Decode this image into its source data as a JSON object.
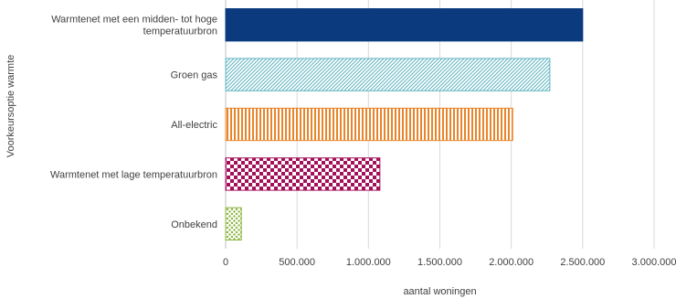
{
  "chart_data": {
    "type": "bar",
    "orientation": "horizontal",
    "title": "",
    "xlabel": "aantal woningen",
    "ylabel": "Voorkeursoptie warmte",
    "xlim": [
      0,
      3000000
    ],
    "xticks": [
      0,
      500000,
      1000000,
      1500000,
      2000000,
      2500000,
      3000000
    ],
    "xtick_labels": [
      "0",
      "500.000",
      "1.000.000",
      "1.500.000",
      "2.000.000",
      "2.500.000",
      "3.000.000"
    ],
    "grid": "vertical",
    "legend": "none",
    "categories": [
      [
        "Warmtenet met een midden- tot hoge",
        "temperatuurbron"
      ],
      [
        "Groen gas"
      ],
      [
        "All-electric"
      ],
      [
        "Warmtenet met lage temperatuurbron"
      ],
      [
        "Onbekend"
      ]
    ],
    "values": [
      2500000,
      2270000,
      2010000,
      1080000,
      110000
    ],
    "colors": [
      "#0b3a7e",
      "#5fb3bf",
      "#e8852a",
      "#a3105a",
      "#8ab43c"
    ],
    "patterns": [
      "solid",
      "diagonal-hatch",
      "vertical-stripes",
      "checker",
      "dots"
    ]
  }
}
